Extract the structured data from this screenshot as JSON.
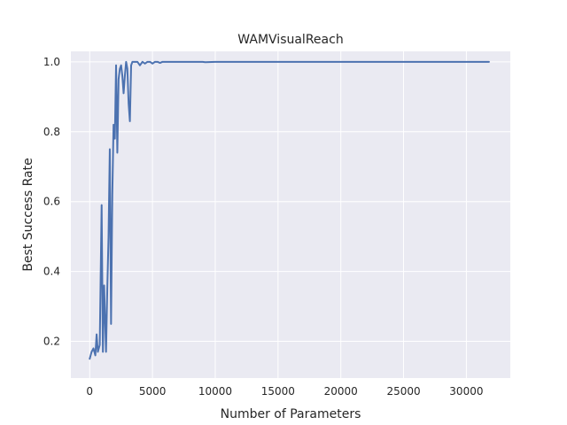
{
  "chart_data": {
    "type": "line",
    "title": "WAMVisualReach",
    "xlabel": "Number of Parameters",
    "ylabel": "Best Success Rate",
    "xlim": [
      -1500,
      33500
    ],
    "ylim": [
      0.095,
      1.03
    ],
    "xticks": [
      0,
      5000,
      10000,
      15000,
      20000,
      25000,
      30000
    ],
    "xtick_labels": [
      "0",
      "5000",
      "10000",
      "15000",
      "20000",
      "25000",
      "30000"
    ],
    "yticks": [
      0.2,
      0.4,
      0.6,
      0.8,
      1.0
    ],
    "ytick_labels": [
      "0.2",
      "0.4",
      "0.6",
      "0.8",
      "1.0"
    ],
    "grid": true,
    "background": "#eaeaf2",
    "series": [
      {
        "color": "#4c72b0",
        "x": [
          0,
          150,
          300,
          450,
          550,
          650,
          800,
          950,
          1050,
          1150,
          1300,
          1400,
          1500,
          1600,
          1700,
          1800,
          1900,
          2000,
          2100,
          2200,
          2300,
          2400,
          2500,
          2600,
          2700,
          2800,
          2900,
          3000,
          3100,
          3200,
          3300,
          3400,
          3500,
          3600,
          3700,
          3800,
          4000,
          4200,
          4400,
          4600,
          4800,
          5000,
          5200,
          5400,
          5600,
          5800,
          6000,
          6200,
          6500,
          7000,
          8000,
          9000,
          9200,
          10000,
          12000,
          15000,
          20000,
          25000,
          30000,
          31800
        ],
        "y": [
          0.15,
          0.17,
          0.18,
          0.16,
          0.22,
          0.17,
          0.19,
          0.59,
          0.17,
          0.36,
          0.17,
          0.35,
          0.5,
          0.75,
          0.25,
          0.62,
          0.82,
          0.78,
          0.99,
          0.74,
          0.95,
          0.98,
          0.99,
          0.96,
          0.91,
          0.96,
          1.0,
          0.98,
          0.88,
          0.83,
          0.99,
          1.0,
          1.0,
          1.0,
          1.0,
          1.0,
          0.99,
          1.0,
          0.995,
          1.0,
          1.0,
          0.995,
          1.0,
          1.0,
          0.997,
          1.0,
          1.0,
          1.0,
          1.0,
          1.0,
          1.0,
          1.0,
          0.999,
          1.0,
          1.0,
          1.0,
          1.0,
          1.0,
          1.0,
          1.0
        ]
      }
    ]
  }
}
